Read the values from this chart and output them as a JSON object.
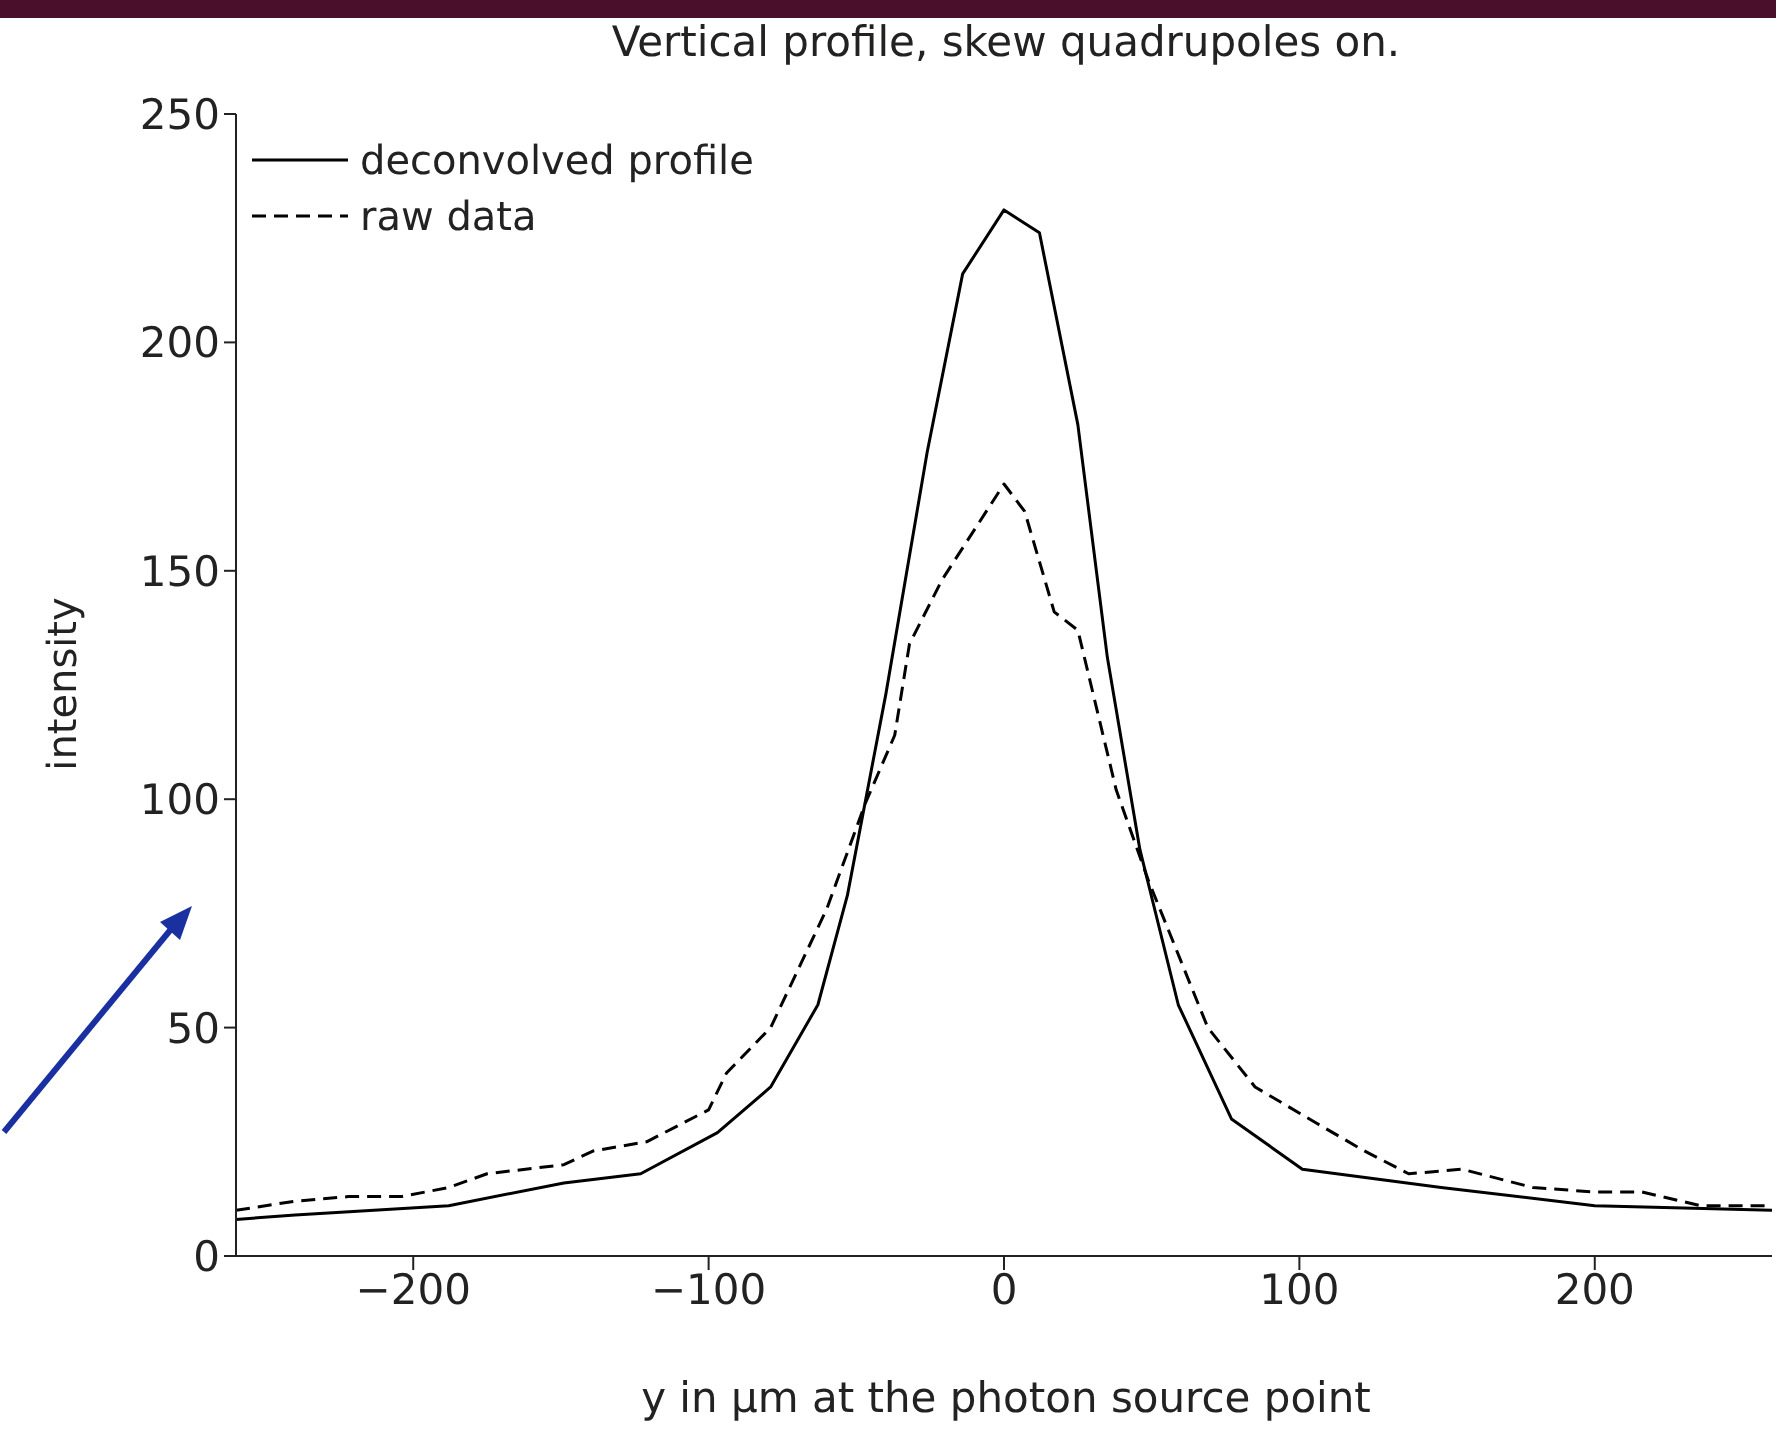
{
  "chart_data": {
    "type": "line",
    "title": "Vertical profile, skew quadrupoles on.",
    "xlabel": "y in μm at the photon source point",
    "ylabel": "intensity",
    "xlim": [
      -260,
      260
    ],
    "xticks": [
      -200,
      -100,
      0,
      100,
      200
    ],
    "ylim": [
      0,
      250
    ],
    "yticks": [
      0,
      50,
      100,
      150,
      200,
      250
    ],
    "legend": "top left",
    "marker": "none",
    "series": [
      {
        "name": "deconvolved profile",
        "color": "#000000",
        "line_style": "solid",
        "x": [
          -260,
          -240,
          -188,
          -149,
          -123,
          -97,
          -79,
          -63,
          -53,
          -40,
          -26,
          -14,
          0,
          12,
          25,
          35,
          46,
          59,
          77,
          101,
          148,
          200,
          260
        ],
        "values": [
          8,
          9,
          11,
          16,
          18,
          27,
          37,
          55,
          79,
          123,
          176,
          215,
          229,
          224,
          182,
          131,
          89,
          55,
          30,
          19,
          15,
          11,
          10
        ]
      },
      {
        "name": "raw data",
        "color": "#000000",
        "line_style": "dashed",
        "x": [
          -260,
          -240,
          -222,
          -204,
          -188,
          -175,
          -149,
          -139,
          -121,
          -100,
          -94,
          -79,
          -60,
          -47,
          -37,
          -32,
          -21,
          -6,
          0,
          7,
          17,
          25,
          38,
          49,
          69,
          85,
          106,
          122,
          137,
          155,
          179,
          200,
          216,
          236,
          260
        ],
        "values": [
          10,
          12,
          13,
          13,
          15,
          18,
          20,
          23,
          25,
          32,
          40,
          50,
          76,
          99,
          114,
          134,
          148,
          163,
          169,
          163,
          141,
          137,
          102,
          82,
          50,
          37,
          29,
          23,
          18,
          19,
          15,
          14,
          14,
          11,
          11
        ]
      }
    ]
  }
}
